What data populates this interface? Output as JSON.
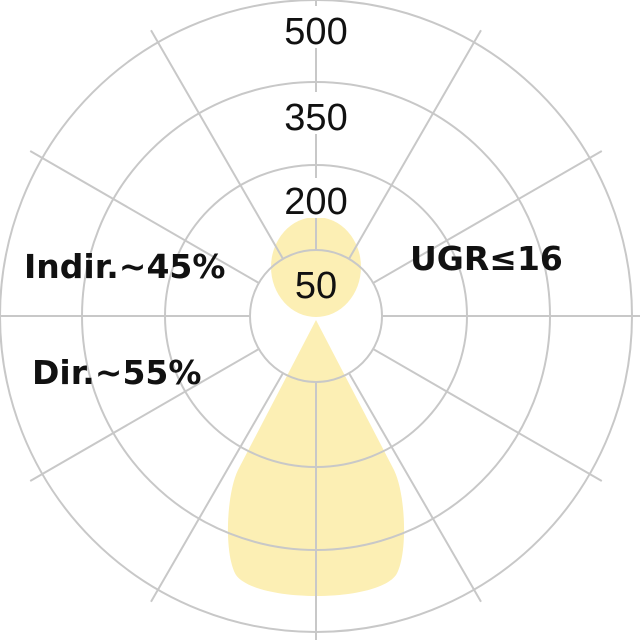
{
  "diagram": {
    "scale_labels": [
      "500",
      "350",
      "200",
      "50"
    ],
    "annotations": {
      "indirect": "Indir.~45%",
      "direct": "Dir.~55%",
      "glare": "UGR≤16"
    },
    "colors": {
      "distribution_fill": "#fcefb4",
      "grid": "#c8c8c8",
      "text": "#111111"
    }
  }
}
